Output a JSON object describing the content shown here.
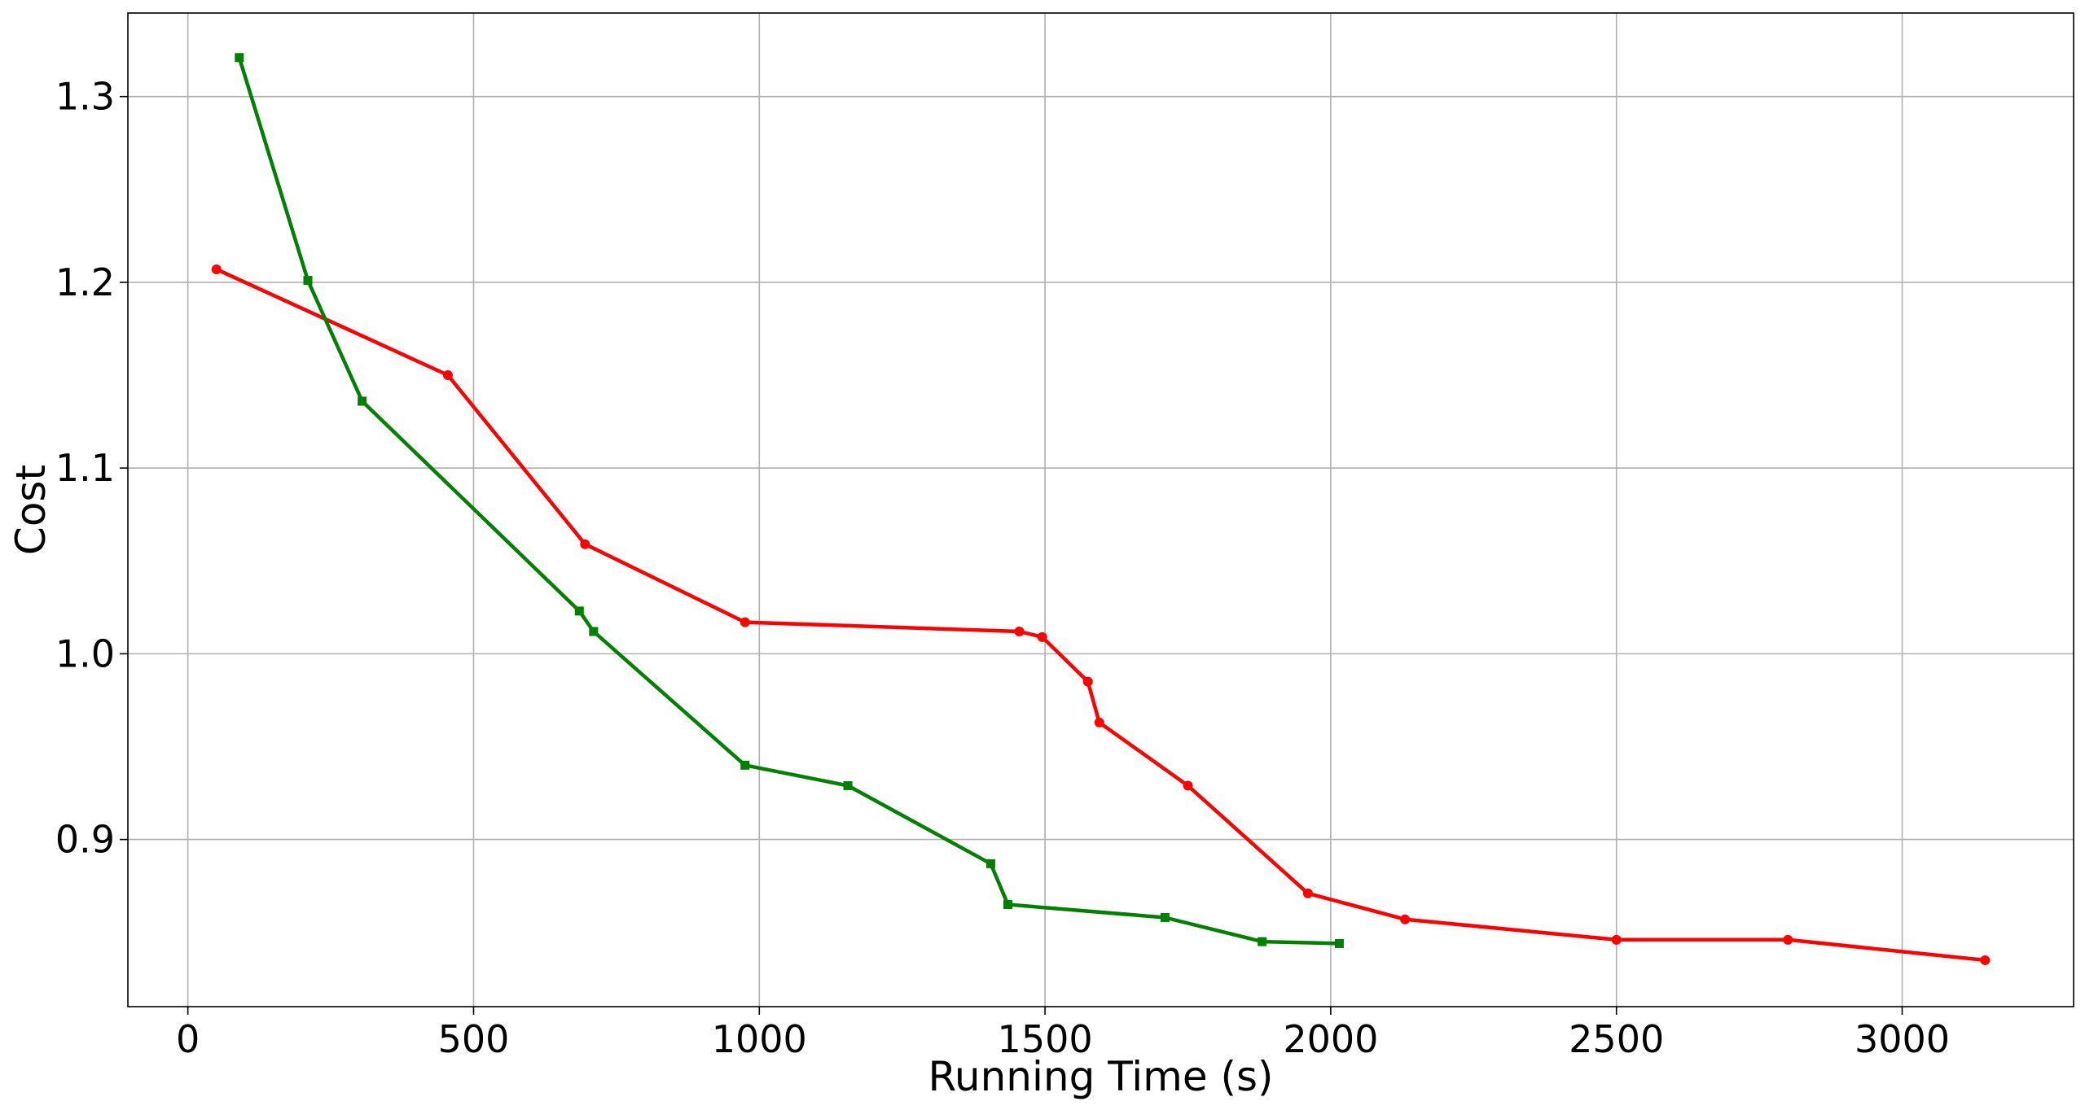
{
  "chart_data": {
    "type": "line",
    "xlabel": "Running Time (s)",
    "ylabel": "Cost",
    "xlim": [
      -105,
      3300
    ],
    "ylim": [
      0.81,
      1.345
    ],
    "xticks": [
      0,
      500,
      1000,
      1500,
      2000,
      2500,
      3000
    ],
    "xtick_labels": [
      "0",
      "500",
      "1000",
      "1500",
      "2000",
      "2500",
      "3000"
    ],
    "yticks": [
      0.9,
      1.0,
      1.1,
      1.2,
      1.3
    ],
    "ytick_labels": [
      "0.9",
      "1.0",
      "1.1",
      "1.2",
      "1.3"
    ],
    "grid": true,
    "legend": null,
    "series": [
      {
        "color": "#ff0000",
        "marker": "circle",
        "x": [
          50,
          455,
          695,
          975,
          1455,
          1495,
          1575,
          1595,
          1750,
          1960,
          2130,
          2500,
          2800,
          3145
        ],
        "y": [
          1.207,
          1.15,
          1.059,
          1.017,
          1.012,
          1.009,
          0.985,
          0.963,
          0.929,
          0.871,
          0.857,
          0.846,
          0.846,
          0.835
        ]
      },
      {
        "color": "#008000",
        "marker": "square",
        "x": [
          90,
          210,
          305,
          685,
          710,
          975,
          1155,
          1405,
          1435,
          1710,
          1880,
          2015
        ],
        "y": [
          1.321,
          1.201,
          1.136,
          1.023,
          1.012,
          0.94,
          0.929,
          0.887,
          0.865,
          0.858,
          0.845,
          0.844
        ]
      }
    ]
  }
}
